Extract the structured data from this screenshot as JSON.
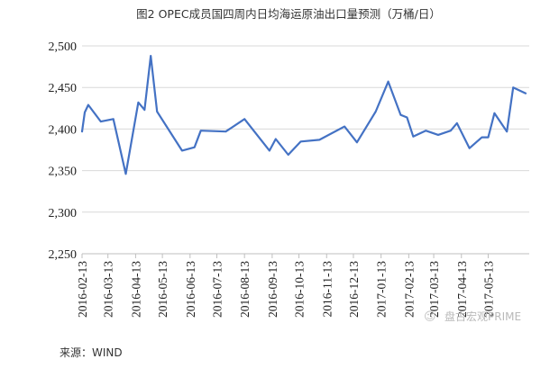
{
  "watermark": "盘古宏观PRIME",
  "source": "来源：WIND",
  "chart_data": {
    "type": "line",
    "title": "图2  OPEC成员国四周内日均海运原油出口量预测（万桶/日）",
    "xlabel": "",
    "ylabel": "",
    "ylim": [
      2250,
      2500
    ],
    "yticks": [
      2250,
      2300,
      2350,
      2400,
      2450,
      2500
    ],
    "ytick_labels": [
      "2,250",
      "2,300",
      "2,350",
      "2,400",
      "2,450",
      "2,500"
    ],
    "xticks": [
      "2016-02-13",
      "2016-03-13",
      "2016-04-13",
      "2016-05-13",
      "2016-06-13",
      "2016-07-13",
      "2016-08-13",
      "2016-09-13",
      "2016-10-13",
      "2016-11-13",
      "2016-12-13",
      "2017-01-13",
      "2017-02-13",
      "2017-03-13",
      "2017-04-13",
      "2017-05-13"
    ],
    "grid": true,
    "color": "#4472c4",
    "series": [
      {
        "points": [
          [
            "2016-02-13",
            2397
          ],
          [
            "2016-02-16",
            2420
          ],
          [
            "2016-02-20",
            2429
          ],
          [
            "2016-03-05",
            2409
          ],
          [
            "2016-03-19",
            2412
          ],
          [
            "2016-04-02",
            2346
          ],
          [
            "2016-04-16",
            2432
          ],
          [
            "2016-04-23",
            2423
          ],
          [
            "2016-04-30",
            2488
          ],
          [
            "2016-05-07",
            2421
          ],
          [
            "2016-06-04",
            2374
          ],
          [
            "2016-06-18",
            2378
          ],
          [
            "2016-06-25",
            2398
          ],
          [
            "2016-07-23",
            2397
          ],
          [
            "2016-08-13",
            2412
          ],
          [
            "2016-09-10",
            2374
          ],
          [
            "2016-09-17",
            2388
          ],
          [
            "2016-10-01",
            2369
          ],
          [
            "2016-10-15",
            2385
          ],
          [
            "2016-11-05",
            2387
          ],
          [
            "2016-12-03",
            2403
          ],
          [
            "2016-12-17",
            2384
          ],
          [
            "2017-01-07",
            2421
          ],
          [
            "2017-01-21",
            2457
          ],
          [
            "2017-02-04",
            2417
          ],
          [
            "2017-02-11",
            2414
          ],
          [
            "2017-02-18",
            2391
          ],
          [
            "2017-03-04",
            2398
          ],
          [
            "2017-03-18",
            2393
          ],
          [
            "2017-04-01",
            2398
          ],
          [
            "2017-04-08",
            2407
          ],
          [
            "2017-04-22",
            2377
          ],
          [
            "2017-05-06",
            2390
          ],
          [
            "2017-05-13",
            2390
          ],
          [
            "2017-05-20",
            2419
          ],
          [
            "2017-06-03",
            2397
          ],
          [
            "2017-06-10",
            2450
          ],
          [
            "2017-06-24",
            2443
          ]
        ]
      }
    ]
  }
}
